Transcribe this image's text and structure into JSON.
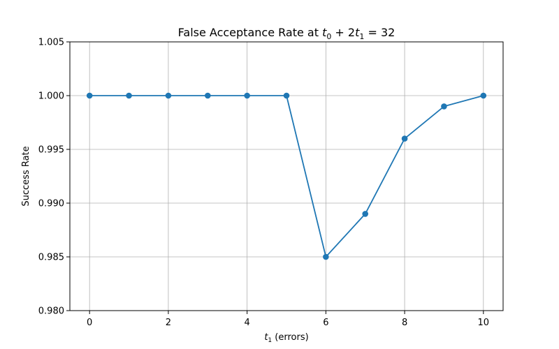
{
  "chart_data": {
    "type": "line",
    "title": "False Acceptance Rate at t₀ + 2t₁ = 32",
    "title_parts": {
      "prefix": "False Acceptance Rate at ",
      "t": "t",
      "sub0": "0",
      "mid": " + 2",
      "sub1": "1",
      "suffix": " = 32"
    },
    "xlabel": "t₁ (errors)",
    "xlabel_parts": {
      "t": "t",
      "sub": "1",
      "suffix": " (errors)"
    },
    "ylabel": "Success Rate",
    "xlim": [
      -0.5,
      10.5
    ],
    "ylim": [
      0.98,
      1.005
    ],
    "xticks": [
      0,
      2,
      4,
      6,
      8,
      10
    ],
    "xtick_labels": [
      "0",
      "2",
      "4",
      "6",
      "8",
      "10"
    ],
    "yticks": [
      0.98,
      0.985,
      0.99,
      0.995,
      1.0,
      1.005
    ],
    "ytick_labels": [
      "0.980",
      "0.985",
      "0.990",
      "0.995",
      "1.000",
      "1.005"
    ],
    "grid": true,
    "series": [
      {
        "color": "#1f77b4",
        "marker": "circle",
        "x": [
          0,
          1,
          2,
          3,
          4,
          5,
          6,
          7,
          8,
          9,
          10
        ],
        "y": [
          1.0,
          1.0,
          1.0,
          1.0,
          1.0,
          1.0,
          0.985,
          0.989,
          0.996,
          0.999,
          1.0
        ]
      }
    ]
  }
}
